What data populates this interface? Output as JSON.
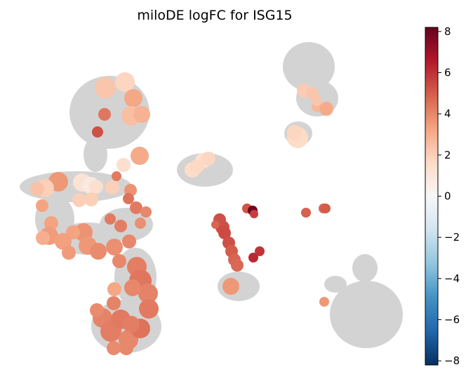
{
  "chart_data": {
    "type": "scatter",
    "title": "miloDE logFC for ISG15",
    "xlabel": "",
    "ylabel": "",
    "grid": false,
    "colorbar": {
      "cmap": "RdBu_r",
      "vmin": -8.2,
      "vmax": 8.2,
      "ticks": [
        -8,
        -6,
        -4,
        -2,
        0,
        2,
        4,
        6,
        8
      ],
      "tick_labels": [
        "−8",
        "−6",
        "−4",
        "−2",
        "0",
        "2",
        "4",
        "6",
        "8"
      ],
      "position": "right"
    },
    "background_clusters": {
      "color": "#d3d3d3",
      "note_free": true
    },
    "series": [
      {
        "values": [
          [
            150,
            125,
            2.3,
            15
          ],
          [
            178,
            117,
            1.8,
            14
          ],
          [
            190,
            140,
            3.2,
            13
          ],
          [
            187,
            165,
            2.5,
            14
          ],
          [
            202,
            163,
            2.9,
            12
          ],
          [
            149,
            163,
            4.4,
            9
          ],
          [
            139,
            188,
            5.3,
            8
          ],
          [
            199,
            222,
            3.1,
            13
          ],
          [
            176,
            235,
            1.4,
            10
          ],
          [
            166,
            251,
            4.3,
            7
          ],
          [
            83,
            259,
            3.6,
            14
          ],
          [
            64,
            268,
            2.0,
            13
          ],
          [
            53,
            269,
            2.4,
            10
          ],
          [
            117,
            260,
            1.2,
            13
          ],
          [
            129,
            264,
            0.8,
            12
          ],
          [
            137,
            266,
            1.4,
            10
          ],
          [
            160,
            267,
            2.0,
            10
          ],
          [
            113,
            285,
            2.0,
            10
          ],
          [
            130,
            284,
            2.0,
            10
          ],
          [
            186,
            271,
            3.7,
            9
          ],
          [
            183,
            283,
            4.5,
            8
          ],
          [
            60,
            293,
            3.3,
            9
          ],
          [
            194,
            296,
            4.3,
            9
          ],
          [
            208,
            302,
            4.0,
            8
          ],
          [
            73,
            318,
            3.3,
            10
          ],
          [
            70,
            336,
            3.5,
            13
          ],
          [
            61,
            339,
            3.0,
            10
          ],
          [
            119,
            331,
            3.7,
            13
          ],
          [
            104,
            331,
            3.3,
            10
          ],
          [
            157,
            312,
            4.3,
            8
          ],
          [
            172,
            322,
            4.2,
            9
          ],
          [
            200,
            318,
            3.8,
            8
          ],
          [
            125,
            350,
            3.6,
            13
          ],
          [
            90,
            344,
            3.4,
            12
          ],
          [
            98,
            360,
            3.5,
            10
          ],
          [
            140,
            358,
            3.9,
            12
          ],
          [
            163,
            352,
            3.8,
            12
          ],
          [
            184,
            344,
            4.0,
            10
          ],
          [
            170,
            372,
            4.0,
            10
          ],
          [
            195,
            380,
            4.2,
            14
          ],
          [
            200,
            400,
            4.4,
            16
          ],
          [
            211,
            418,
            4.1,
            14
          ],
          [
            189,
            410,
            4.0,
            12
          ],
          [
            163,
            412,
            3.2,
            10
          ],
          [
            162,
            432,
            4.1,
            10
          ],
          [
            146,
            453,
            4.1,
            14
          ],
          [
            158,
            472,
            4.2,
            15
          ],
          [
            183,
            484,
            4.0,
            14
          ],
          [
            200,
            468,
            4.5,
            14
          ],
          [
            212,
            440,
            4.3,
            14
          ],
          [
            172,
            455,
            4.3,
            14
          ],
          [
            138,
            442,
            3.9,
            10
          ],
          [
            187,
            462,
            4.2,
            12
          ],
          [
            180,
            496,
            4.0,
            10
          ],
          [
            162,
            496,
            3.9,
            10
          ],
          [
            424,
            196,
            1.6,
            15
          ],
          [
            420,
            189,
            1.8,
            11
          ],
          [
            433,
            129,
            2.1,
            10
          ],
          [
            445,
            133,
            2.3,
            9
          ],
          [
            452,
            152,
            2.7,
            8
          ],
          [
            465,
            155,
            3.1,
            10
          ],
          [
            452,
            144,
            2.3,
            7
          ],
          [
            274,
            242,
            1.6,
            11
          ],
          [
            289,
            229,
            1.3,
            11
          ],
          [
            297,
            226,
            1.8,
            10
          ],
          [
            281,
            237,
            1.7,
            10
          ],
          [
            313,
            313,
            5.3,
            9
          ],
          [
            317,
            324,
            5.3,
            10
          ],
          [
            320,
            332,
            5.4,
            9
          ],
          [
            326,
            346,
            5.3,
            9
          ],
          [
            330,
            358,
            5.0,
            9
          ],
          [
            334,
            370,
            4.8,
            9
          ],
          [
            338,
            378,
            4.7,
            9
          ],
          [
            329,
            408,
            3.6,
            12
          ],
          [
            352,
            297,
            5.2,
            7
          ],
          [
            360,
            300,
            8.0,
            7
          ],
          [
            362,
            305,
            5.7,
            6
          ],
          [
            361,
            367,
            6.2,
            7
          ],
          [
            370,
            358,
            5.9,
            7
          ],
          [
            436,
            303,
            4.9,
            7
          ],
          [
            461,
            297,
            4.8,
            7
          ],
          [
            464,
            297,
            5.0,
            7
          ],
          [
            462,
            430,
            3.6,
            7
          ],
          [
            307,
            320,
            4.8,
            6
          ],
          [
            316,
            327,
            5.4,
            6
          ]
        ]
      }
    ]
  }
}
